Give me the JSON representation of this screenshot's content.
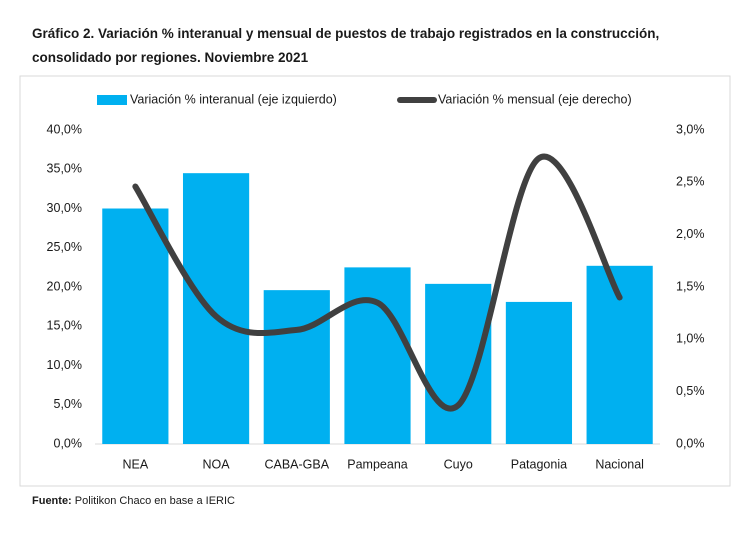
{
  "chart_data": {
    "type": "bar-line",
    "title": "Gráfico 2. Variación % interanual y mensual de puestos de trabajo registrados en la construcción, consolidado por regiones. Noviembre 2021",
    "categories": [
      "NEA",
      "NOA",
      "CABA-GBA",
      "Pampeana",
      "Cuyo",
      "Patagonia",
      "Nacional"
    ],
    "series": [
      {
        "name": "Variación % interanual (eje izquierdo)",
        "type": "bar",
        "color": "#00b0f0",
        "values": [
          30.0,
          34.5,
          19.6,
          22.5,
          20.4,
          18.1,
          22.7
        ]
      },
      {
        "name": "Variación % mensual (eje derecho)",
        "type": "line",
        "axis": "y2",
        "color": "#404040",
        "values": [
          2.46,
          1.22,
          1.09,
          1.35,
          0.37,
          2.73,
          1.4
        ]
      }
    ],
    "ylim": [
      0,
      40
    ],
    "yticks": [
      {
        "value": 0,
        "label": "0,0%"
      },
      {
        "value": 5,
        "label": "5,0%"
      },
      {
        "value": 10,
        "label": "10,0%"
      },
      {
        "value": 15,
        "label": "15,0%"
      },
      {
        "value": 20,
        "label": "20,0%"
      },
      {
        "value": 25,
        "label": "25,0%"
      },
      {
        "value": 30,
        "label": "30,0%"
      },
      {
        "value": 35,
        "label": "35,0%"
      },
      {
        "value": 40,
        "label": "40,0%"
      }
    ],
    "y2lim": [
      0,
      3
    ],
    "y2ticks": [
      {
        "value": 0,
        "label": "0,0%"
      },
      {
        "value": 0.5,
        "label": "0,5%"
      },
      {
        "value": 1,
        "label": "1,0%"
      },
      {
        "value": 1.5,
        "label": "1,5%"
      },
      {
        "value": 2,
        "label": "2,0%"
      },
      {
        "value": 2.5,
        "label": "2,5%"
      },
      {
        "value": 3,
        "label": "3,0%"
      }
    ],
    "grid": false,
    "legend": "top",
    "source_label": "Fuente:",
    "source_text": "Politikon Chaco en base a IERIC"
  }
}
